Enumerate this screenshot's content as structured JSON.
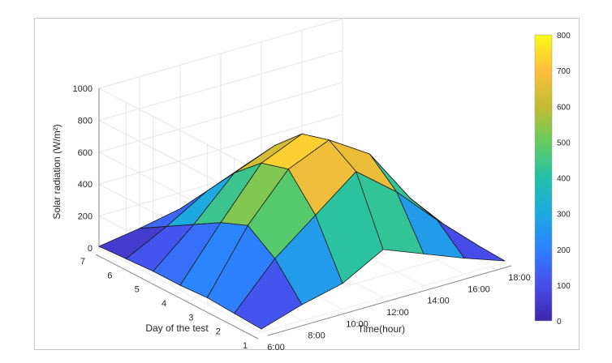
{
  "chart_data": {
    "type": "surface",
    "title": "",
    "xlabel": "Time(hour)",
    "ylabel": "Day of the test",
    "zlabel": "Solar radiation (W/m²)",
    "x_ticks": [
      "6:00",
      "8:00",
      "10:00",
      "12:00",
      "14:00",
      "16:00",
      "18:00"
    ],
    "y_ticks": [
      "1",
      "2",
      "3",
      "4",
      "5",
      "6",
      "7"
    ],
    "z_ticks": [
      "0",
      "200",
      "400",
      "600",
      "800",
      "1000"
    ],
    "zlim": [
      0,
      1000
    ],
    "colorbar": {
      "ticks": [
        "0",
        "100",
        "200",
        "300",
        "400",
        "500",
        "600",
        "700",
        "800"
      ],
      "clim": [
        0,
        800
      ],
      "colormap": "parula"
    },
    "days": [
      1,
      2,
      3,
      4,
      5,
      6,
      7
    ],
    "hours": [
      6,
      8,
      10,
      12,
      14,
      16,
      18
    ],
    "z": [
      [
        20,
        100,
        160,
        300,
        200,
        100,
        10
      ],
      [
        30,
        300,
        500,
        700,
        500,
        250,
        20
      ],
      [
        40,
        420,
        700,
        810,
        650,
        300,
        30
      ],
      [
        30,
        350,
        650,
        760,
        600,
        280,
        20
      ],
      [
        30,
        250,
        500,
        600,
        450,
        200,
        10
      ],
      [
        20,
        150,
        300,
        400,
        300,
        150,
        10
      ],
      [
        10,
        50,
        100,
        150,
        100,
        50,
        0
      ]
    ],
    "grid": true
  }
}
